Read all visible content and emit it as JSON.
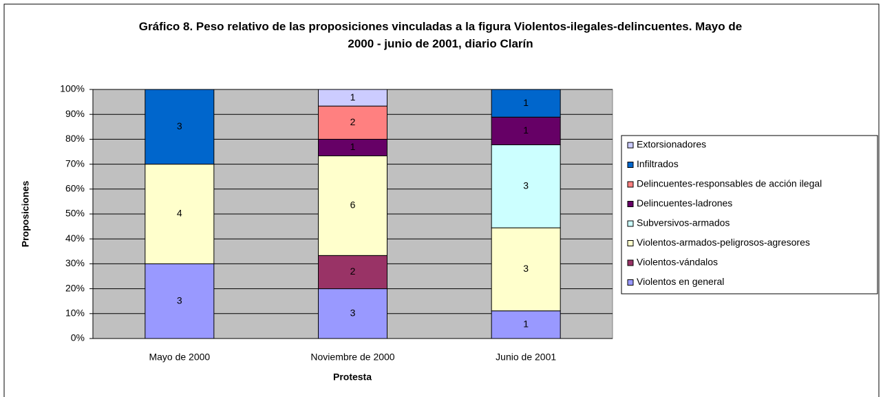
{
  "chart_data": {
    "type": "bar",
    "stacking": "percent",
    "title": "Gráfico 8. Peso relativo de las proposiciones vinculadas a la figura Violentos-ilegales-delincuentes. Mayo de 2000 - junio de 2001, diario Clarín",
    "xlabel": "Protesta",
    "ylabel": "Proposiciones",
    "categories": [
      "Mayo  de 2000",
      "Noviembre de 2000",
      "Junio de 2001"
    ],
    "series": [
      {
        "name": "Violentos en general",
        "color": "#9999ff",
        "values": [
          3,
          3,
          1
        ]
      },
      {
        "name": "Violentos-vándalos",
        "color": "#993366",
        "values": [
          null,
          2,
          null
        ]
      },
      {
        "name": "Violentos-armados-peligrosos-agresores",
        "color": "#ffffcc",
        "values": [
          4,
          6,
          3
        ]
      },
      {
        "name": "Subversivos-armados",
        "color": "#ccffff",
        "values": [
          null,
          null,
          3
        ]
      },
      {
        "name": "Delincuentes-ladrones",
        "color": "#660066",
        "values": [
          null,
          1,
          1
        ]
      },
      {
        "name": "Delincuentes-responsables de acción ilegal",
        "color": "#ff8080",
        "values": [
          null,
          2,
          null
        ]
      },
      {
        "name": "Infiltrados",
        "color": "#0066cc",
        "values": [
          3,
          null,
          1
        ]
      },
      {
        "name": "Extorsionadores",
        "color": "#ccccff",
        "values": [
          null,
          1,
          null
        ]
      }
    ],
    "ylim": [
      0,
      100
    ],
    "yticks": [
      {
        "value": 0,
        "label": "0%"
      },
      {
        "value": 10,
        "label": "10%"
      },
      {
        "value": 20,
        "label": "20%"
      },
      {
        "value": 30,
        "label": "30%"
      },
      {
        "value": 40,
        "label": "40%"
      },
      {
        "value": 50,
        "label": "50%"
      },
      {
        "value": 60,
        "label": "60%"
      },
      {
        "value": 70,
        "label": "70%"
      },
      {
        "value": 80,
        "label": "80%"
      },
      {
        "value": 90,
        "label": "90%"
      },
      {
        "value": 100,
        "label": "100%"
      }
    ],
    "grid": true,
    "legend": "right",
    "plot_background": "#c0c0c0"
  }
}
